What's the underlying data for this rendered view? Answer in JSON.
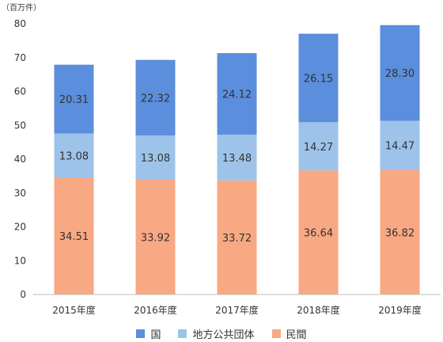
{
  "chart_data": {
    "type": "bar",
    "stacked": true,
    "unit_label": "（百万件）",
    "categories": [
      "2015年度",
      "2016年度",
      "2017年度",
      "2018年度",
      "2019年度"
    ],
    "series": [
      {
        "name": "民間",
        "values": [
          34.51,
          33.92,
          33.72,
          36.64,
          36.82
        ],
        "color": "#F8A882"
      },
      {
        "name": "地方公共団体",
        "values": [
          13.08,
          13.08,
          13.48,
          14.27,
          14.47
        ],
        "color": "#9DC3EA"
      },
      {
        "name": "国",
        "values": [
          20.31,
          22.32,
          24.12,
          26.15,
          28.3
        ],
        "color": "#5B8EDC"
      }
    ],
    "ylim": [
      0,
      80
    ],
    "yticks": [
      0,
      10,
      20,
      30,
      40,
      50,
      60,
      70,
      80
    ],
    "grid": false,
    "legend_position": "bottom",
    "legend_order": [
      "国",
      "地方公共団体",
      "民間"
    ]
  }
}
